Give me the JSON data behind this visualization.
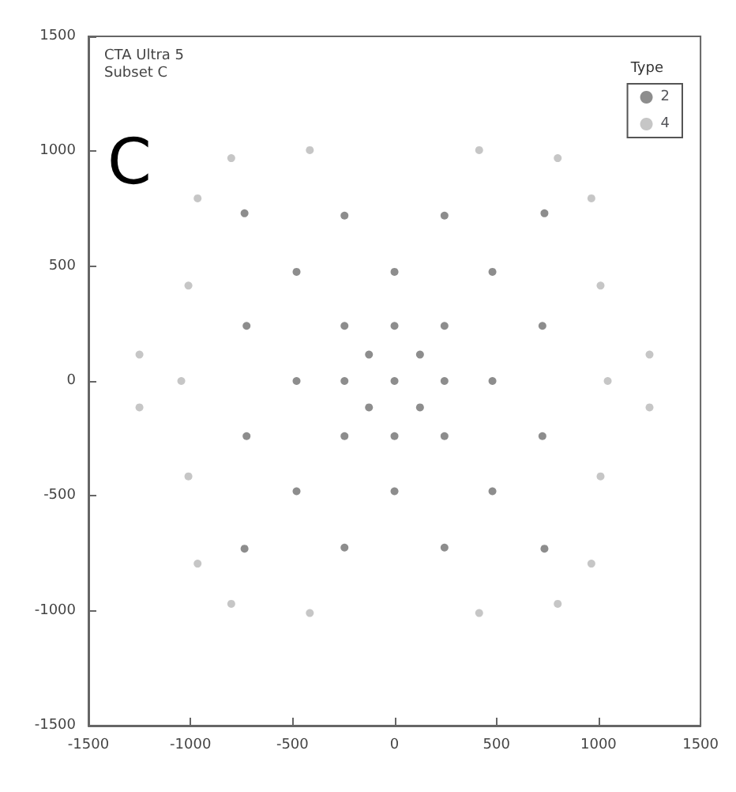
{
  "chart_data": {
    "type": "scatter",
    "annotations": [
      "CTA Ultra 5",
      "Subset C",
      "C"
    ],
    "legend_title": "Type",
    "legend": "top right",
    "marker": "circle",
    "grid": false,
    "xlim": [
      -1500,
      1500
    ],
    "xticks": [
      -1500,
      -1000,
      -500,
      0,
      500,
      1000,
      1500
    ],
    "ylim": [
      -1500,
      1500
    ],
    "yticks": [
      -1500,
      -1000,
      -500,
      0,
      500,
      1000,
      1500
    ],
    "series": [
      {
        "name": "2",
        "color": "#707070",
        "x": [
          -245,
          245,
          -480,
          0,
          480,
          -725,
          -245,
          0,
          245,
          725,
          -125,
          125,
          -480,
          -245,
          0,
          245,
          480,
          -125,
          125,
          -725,
          -245,
          0,
          245,
          725,
          -480,
          0,
          480,
          -245,
          245,
          -735,
          735,
          -735,
          735
        ],
        "values": [
          720,
          720,
          475,
          475,
          475,
          240,
          240,
          240,
          240,
          240,
          115,
          115,
          0,
          0,
          0,
          0,
          0,
          -115,
          -115,
          -240,
          -240,
          -240,
          -240,
          -240,
          -480,
          -480,
          -480,
          -725,
          -725,
          730,
          730,
          -730,
          -730
        ]
      },
      {
        "name": "4",
        "color": "#b8b8b8",
        "x": [
          -800,
          -415,
          415,
          800,
          -965,
          965,
          -1010,
          1010,
          -1250,
          1250,
          -1045,
          1045,
          -1250,
          1250,
          -1010,
          1010,
          -965,
          965,
          -800,
          -415,
          415,
          800
        ],
        "values": [
          970,
          1005,
          1005,
          970,
          795,
          795,
          415,
          415,
          115,
          115,
          0,
          0,
          -115,
          -115,
          -415,
          -415,
          -795,
          -795,
          -970,
          -1010,
          -1010,
          -970
        ]
      }
    ]
  }
}
